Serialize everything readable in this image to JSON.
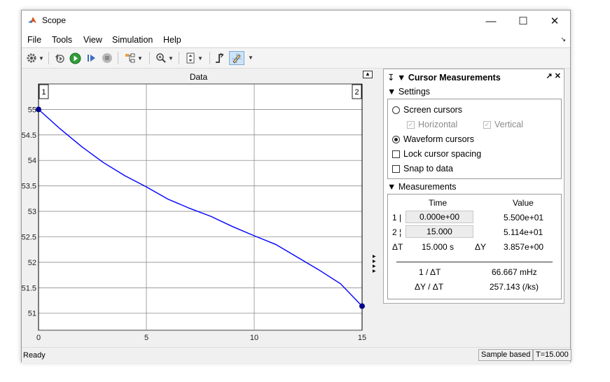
{
  "window": {
    "title": "Scope",
    "minimize": "—",
    "maximize": "☐",
    "close": "✕"
  },
  "menu": {
    "items": [
      "File",
      "Tools",
      "View",
      "Simulation",
      "Help"
    ]
  },
  "plot": {
    "title": "Data"
  },
  "chart_data": {
    "type": "line",
    "title": "Data",
    "xlim": [
      0,
      15
    ],
    "ylim": [
      50.667,
      55.5
    ],
    "xticks": [
      0,
      5,
      10,
      15
    ],
    "yticks": [
      51,
      51.5,
      52,
      52.5,
      53,
      53.5,
      54,
      54.5,
      55
    ],
    "ytick_labels": [
      "51",
      "51.5",
      "52",
      "52.5",
      "53",
      "53.5",
      "54",
      "54.5",
      "55"
    ],
    "grid": true,
    "color": "#0000ff",
    "series": [
      {
        "x": [
          0,
          1,
          2,
          3,
          4,
          5,
          6,
          7,
          8,
          9,
          10,
          11,
          12,
          13,
          14,
          15
        ],
        "y": [
          55.0,
          54.62,
          54.27,
          53.96,
          53.7,
          53.48,
          53.24,
          53.06,
          52.9,
          52.7,
          52.52,
          52.35,
          52.1,
          51.85,
          51.58,
          51.14
        ]
      }
    ],
    "cursors": [
      {
        "label": "1",
        "x": 0,
        "y": 55.0
      },
      {
        "label": "2",
        "x": 15,
        "y": 51.14
      }
    ]
  },
  "panel": {
    "title": "Cursor Measurements",
    "settings": {
      "header": "Settings",
      "screen_cursors": "Screen cursors",
      "horizontal": "Horizontal",
      "vertical": "Vertical",
      "waveform_cursors": "Waveform cursors",
      "lock_spacing": "Lock cursor spacing",
      "snap": "Snap to data"
    },
    "measurements": {
      "header": "Measurements",
      "col_time": "Time",
      "col_value": "Value",
      "row1_label": "1 |",
      "row1_time": "0.000e+00",
      "row1_value": "5.500e+01",
      "row2_label": "2 ¦",
      "row2_time": "15.000",
      "row2_value": "5.114e+01",
      "dt_label": "ΔT",
      "dt_value": "15.000 s",
      "dy_label": "ΔY",
      "dy_value": "3.857e+00",
      "inv_dt_label": "1 / ΔT",
      "inv_dt_value": "66.667 mHz",
      "slope_label": "ΔY / ΔT",
      "slope_value": "257.143 (/ks)"
    }
  },
  "status": {
    "left": "Ready",
    "mode": "Sample based",
    "time": "T=15.000"
  }
}
